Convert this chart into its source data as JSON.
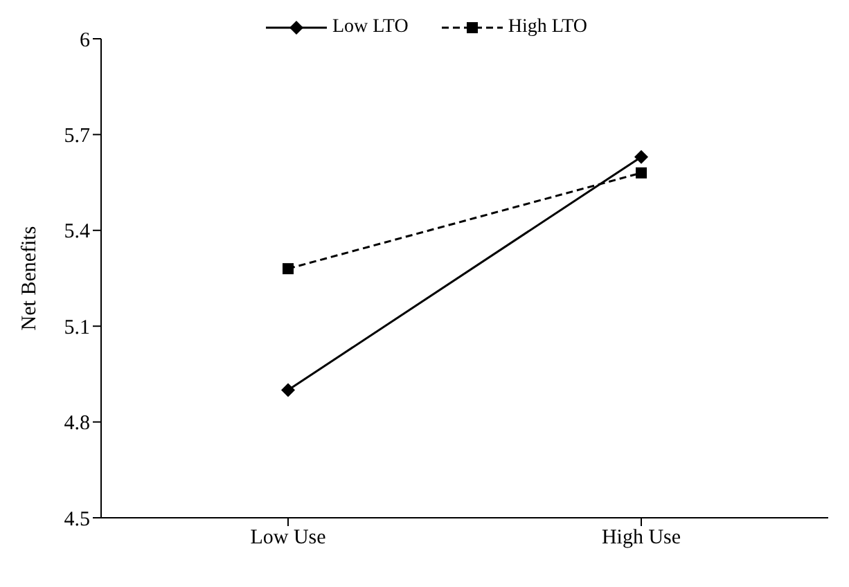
{
  "chart_data": {
    "type": "line",
    "ylabel": "Net Benefits",
    "categories": [
      "Low Use",
      "High Use"
    ],
    "series": [
      {
        "name": "Low LTO",
        "color": "#000000",
        "values": [
          4.9,
          5.63
        ],
        "marker": "diamond",
        "line_style": "solid"
      },
      {
        "name": "High LTO",
        "color": "#000000",
        "values": [
          5.28,
          5.58
        ],
        "marker": "square",
        "line_style": "dashed"
      }
    ],
    "ylim": [
      4.5,
      6
    ],
    "yticks": [
      4.5,
      4.8,
      5.1,
      5.4,
      5.7,
      6
    ],
    "grid": false,
    "legend": "top"
  }
}
